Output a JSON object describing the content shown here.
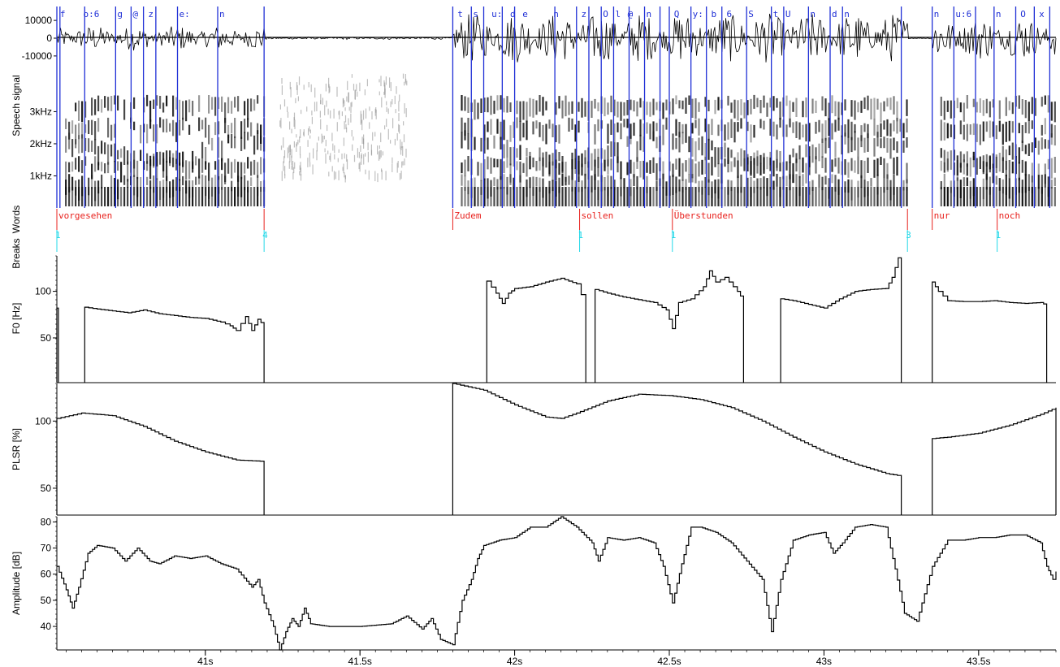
{
  "chart_data": {
    "type": "line",
    "x_axis": {
      "unit": "s",
      "range": [
        40.52,
        43.75
      ],
      "tick_labels": [
        "41s",
        "41.5s",
        "42s",
        "42.5s",
        "43s",
        "43.5s"
      ],
      "ticks": [
        41.0,
        41.5,
        42.0,
        42.5,
        43.0,
        43.5
      ]
    },
    "panels": {
      "speech_signal": {
        "ylabel": "Speech signal",
        "tick_labels": [
          "10000",
          "0",
          "-10000"
        ],
        "ticks": [
          10000,
          0,
          -10000
        ],
        "ylim": [
          -16000,
          16000
        ],
        "segments": [
          {
            "start": 40.52,
            "end": 41.19,
            "amp": 7000
          },
          {
            "start": 41.19,
            "end": 41.8,
            "amp": 700
          },
          {
            "start": 41.8,
            "end": 43.27,
            "amp": 14000
          },
          {
            "start": 43.27,
            "end": 43.35,
            "amp": 400
          },
          {
            "start": 43.35,
            "end": 43.75,
            "amp": 12000
          }
        ],
        "phones": [
          {
            "t": 40.525,
            "label": "f"
          },
          {
            "t": 40.6,
            "label": "o:6"
          },
          {
            "t": 40.71,
            "label": "g"
          },
          {
            "t": 40.76,
            "label": "@"
          },
          {
            "t": 40.81,
            "label": "z"
          },
          {
            "t": 40.91,
            "label": "e:"
          },
          {
            "t": 41.04,
            "label": "n"
          },
          {
            "t": 41.81,
            "label": "t"
          },
          {
            "t": 41.86,
            "label": "s"
          },
          {
            "t": 41.92,
            "label": "u:"
          },
          {
            "t": 41.98,
            "label": "d"
          },
          {
            "t": 42.02,
            "label": "e"
          },
          {
            "t": 42.12,
            "label": "n"
          },
          {
            "t": 42.21,
            "label": "z"
          },
          {
            "t": 42.28,
            "label": "O"
          },
          {
            "t": 42.32,
            "label": "l"
          },
          {
            "t": 42.36,
            "label": "@"
          },
          {
            "t": 42.42,
            "label": "n"
          },
          {
            "t": 42.51,
            "label": "Q"
          },
          {
            "t": 42.57,
            "label": "y:"
          },
          {
            "t": 42.63,
            "label": "b"
          },
          {
            "t": 42.68,
            "label": "6"
          },
          {
            "t": 42.75,
            "label": "S"
          },
          {
            "t": 42.83,
            "label": "t"
          },
          {
            "t": 42.87,
            "label": "U"
          },
          {
            "t": 42.95,
            "label": "n"
          },
          {
            "t": 43.02,
            "label": "d"
          },
          {
            "t": 43.06,
            "label": "n"
          },
          {
            "t": 43.35,
            "label": "n"
          },
          {
            "t": 43.42,
            "label": "u:6"
          },
          {
            "t": 43.55,
            "label": "n"
          },
          {
            "t": 43.63,
            "label": "O"
          },
          {
            "t": 43.69,
            "label": "x"
          }
        ],
        "phone_boundaries": [
          40.52,
          40.53,
          40.61,
          40.71,
          40.76,
          40.8,
          40.84,
          40.91,
          41.04,
          41.19,
          41.8,
          41.86,
          41.9,
          41.96,
          42.0,
          42.13,
          42.2,
          42.24,
          42.28,
          42.32,
          42.37,
          42.42,
          42.47,
          42.5,
          42.57,
          42.62,
          42.67,
          42.75,
          42.83,
          42.87,
          42.95,
          43.02,
          43.06,
          43.25,
          43.35,
          43.42,
          43.49,
          43.55,
          43.62,
          43.68,
          43.73
        ]
      },
      "spectrogram": {
        "tick_labels": [
          "3kHz",
          "2kHz",
          "1kHz"
        ],
        "ticks": [
          3000,
          2000,
          1000
        ],
        "ylim": [
          0,
          4200
        ]
      },
      "words": {
        "ylabel": "Words",
        "items": [
          {
            "t": 40.52,
            "label": "vorgesehen"
          },
          {
            "t": 41.19,
            "label": ""
          },
          {
            "t": 41.8,
            "label": "Zudem"
          },
          {
            "t": 42.21,
            "label": "sollen"
          },
          {
            "t": 42.51,
            "label": "Überstunden"
          },
          {
            "t": 43.27,
            "label": ""
          },
          {
            "t": 43.35,
            "label": "nur"
          },
          {
            "t": 43.56,
            "label": "noch"
          }
        ]
      },
      "breaks": {
        "ylabel": "Breaks",
        "items": [
          {
            "t": 40.52,
            "label": "1"
          },
          {
            "t": 41.19,
            "label": "4"
          },
          {
            "t": 42.21,
            "label": "1"
          },
          {
            "t": 42.51,
            "label": "1"
          },
          {
            "t": 43.27,
            "label": "3"
          },
          {
            "t": 43.56,
            "label": "1"
          }
        ]
      },
      "f0": {
        "ylabel": "F0 [Hz]",
        "tick_labels": [
          "100",
          "50"
        ],
        "ticks": [
          100,
          50
        ],
        "ylim": [
          2,
          138
        ],
        "series": [
          [
            [
              40.52,
              82
            ],
            [
              40.525,
              82
            ]
          ],
          [
            [
              40.61,
              83
            ],
            [
              40.65,
              81
            ],
            [
              40.7,
              79
            ],
            [
              40.75,
              77
            ],
            [
              40.8,
              80
            ],
            [
              40.85,
              76
            ],
            [
              40.9,
              74
            ],
            [
              40.95,
              72
            ],
            [
              41.0,
              71
            ],
            [
              41.05,
              67
            ],
            [
              41.08,
              63
            ],
            [
              41.1,
              58
            ],
            [
              41.13,
              73
            ],
            [
              41.15,
              58
            ],
            [
              41.17,
              70
            ],
            [
              41.19,
              63
            ]
          ],
          [
            [
              41.91,
              111
            ],
            [
              41.94,
              98
            ],
            [
              41.96,
              87
            ],
            [
              41.98,
              98
            ],
            [
              42.0,
              103
            ],
            [
              42.05,
              105
            ],
            [
              42.1,
              110
            ],
            [
              42.15,
              114
            ],
            [
              42.2,
              108
            ],
            [
              42.23,
              85
            ]
          ],
          [
            [
              42.26,
              102
            ],
            [
              42.3,
              98
            ],
            [
              42.35,
              94
            ],
            [
              42.4,
              91
            ],
            [
              42.45,
              88
            ],
            [
              42.49,
              80
            ],
            [
              42.51,
              60
            ],
            [
              42.53,
              88
            ],
            [
              42.57,
              92
            ],
            [
              42.61,
              105
            ],
            [
              42.63,
              122
            ],
            [
              42.65,
              110
            ],
            [
              42.68,
              115
            ],
            [
              42.72,
              100
            ],
            [
              42.74,
              90
            ]
          ],
          [
            [
              42.86,
              92
            ],
            [
              42.9,
              90
            ],
            [
              42.95,
              86
            ],
            [
              43.0,
              82
            ],
            [
              43.05,
              92
            ],
            [
              43.1,
              100
            ],
            [
              43.15,
              102
            ],
            [
              43.2,
              103
            ],
            [
              43.22,
              115
            ],
            [
              43.24,
              136
            ],
            [
              43.25,
              120
            ]
          ],
          [
            [
              43.35,
              110
            ],
            [
              43.37,
              100
            ],
            [
              43.4,
              90
            ],
            [
              43.45,
              89
            ],
            [
              43.5,
              89
            ],
            [
              43.55,
              90
            ],
            [
              43.6,
              88
            ],
            [
              43.65,
              87
            ],
            [
              43.7,
              88
            ],
            [
              43.72,
              85
            ]
          ]
        ]
      },
      "plsr": {
        "ylabel": "PLSR [%]",
        "tick_labels": [
          "100",
          "50"
        ],
        "ticks": [
          100,
          50
        ],
        "ylim": [
          30,
          128
        ],
        "series": [
          [
            [
              40.52,
              102
            ],
            [
              40.6,
              106
            ],
            [
              40.7,
              104
            ],
            [
              40.8,
              96
            ],
            [
              40.9,
              85
            ],
            [
              41.0,
              77
            ],
            [
              41.1,
              71
            ],
            [
              41.19,
              70
            ]
          ],
          [
            [
              41.8,
              128
            ],
            [
              41.9,
              123
            ],
            [
              42.0,
              112
            ],
            [
              42.1,
              103
            ],
            [
              42.15,
              102
            ],
            [
              42.2,
              106
            ],
            [
              42.3,
              115
            ],
            [
              42.4,
              120
            ],
            [
              42.5,
              119
            ],
            [
              42.6,
              116
            ],
            [
              42.7,
              110
            ],
            [
              42.8,
              100
            ],
            [
              42.9,
              88
            ],
            [
              43.0,
              77
            ],
            [
              43.1,
              68
            ],
            [
              43.2,
              61
            ],
            [
              43.25,
              59
            ]
          ],
          [
            [
              43.35,
              87
            ],
            [
              43.4,
              88
            ],
            [
              43.5,
              91
            ],
            [
              43.6,
              97
            ],
            [
              43.7,
              105
            ],
            [
              43.75,
              110
            ]
          ]
        ]
      },
      "amplitude": {
        "ylabel": "Amplitude [dB]",
        "tick_labels": [
          "80",
          "70",
          "60",
          "50",
          "40"
        ],
        "ticks": [
          80,
          70,
          60,
          50,
          40
        ],
        "ylim": [
          31,
          82
        ],
        "series": [
          [
            [
              40.52,
              63
            ],
            [
              40.55,
              54
            ],
            [
              40.57,
              47
            ],
            [
              40.59,
              55
            ],
            [
              40.62,
              68
            ],
            [
              40.65,
              71
            ],
            [
              40.7,
              70
            ],
            [
              40.74,
              65
            ],
            [
              40.78,
              70
            ],
            [
              40.82,
              65
            ],
            [
              40.85,
              64
            ],
            [
              40.9,
              67
            ],
            [
              40.95,
              66
            ],
            [
              41.0,
              67
            ],
            [
              41.05,
              64
            ],
            [
              41.1,
              62
            ],
            [
              41.15,
              55
            ],
            [
              41.17,
              58
            ],
            [
              41.19,
              49
            ],
            [
              41.22,
              40
            ],
            [
              41.24,
              31
            ],
            [
              41.26,
              38
            ],
            [
              41.28,
              43
            ],
            [
              41.3,
              40
            ],
            [
              41.32,
              47
            ],
            [
              41.34,
              41
            ],
            [
              41.4,
              40
            ],
            [
              41.5,
              40
            ],
            [
              41.6,
              41
            ],
            [
              41.65,
              44
            ],
            [
              41.7,
              39
            ],
            [
              41.73,
              43
            ],
            [
              41.76,
              35
            ],
            [
              41.8,
              33
            ],
            [
              41.83,
              50
            ],
            [
              41.86,
              58
            ],
            [
              41.88,
              66
            ],
            [
              41.9,
              71
            ],
            [
              41.95,
              73
            ],
            [
              42.0,
              74
            ],
            [
              42.05,
              78
            ],
            [
              42.1,
              78
            ],
            [
              42.15,
              82
            ],
            [
              42.2,
              78
            ],
            [
              42.25,
              72
            ],
            [
              42.27,
              65
            ],
            [
              42.3,
              74
            ],
            [
              42.35,
              73
            ],
            [
              42.4,
              74
            ],
            [
              42.45,
              72
            ],
            [
              42.48,
              63
            ],
            [
              42.51,
              49
            ],
            [
              42.54,
              64
            ],
            [
              42.57,
              78
            ],
            [
              42.6,
              78
            ],
            [
              42.65,
              76
            ],
            [
              42.7,
              72
            ],
            [
              42.75,
              65
            ],
            [
              42.8,
              58
            ],
            [
              42.83,
              38
            ],
            [
              42.86,
              58
            ],
            [
              42.9,
              73
            ],
            [
              42.95,
              75
            ],
            [
              43.0,
              76
            ],
            [
              43.03,
              68
            ],
            [
              43.06,
              72
            ],
            [
              43.1,
              78
            ],
            [
              43.15,
              79
            ],
            [
              43.2,
              78
            ],
            [
              43.23,
              62
            ],
            [
              43.26,
              45
            ],
            [
              43.3,
              42
            ],
            [
              43.35,
              63
            ],
            [
              43.4,
              73
            ],
            [
              43.45,
              73
            ],
            [
              43.5,
              74
            ],
            [
              43.55,
              74
            ],
            [
              43.6,
              75
            ],
            [
              43.65,
              75
            ],
            [
              43.7,
              72
            ],
            [
              43.72,
              63
            ],
            [
              43.74,
              58
            ],
            [
              43.75,
              61
            ]
          ]
        ]
      }
    }
  }
}
